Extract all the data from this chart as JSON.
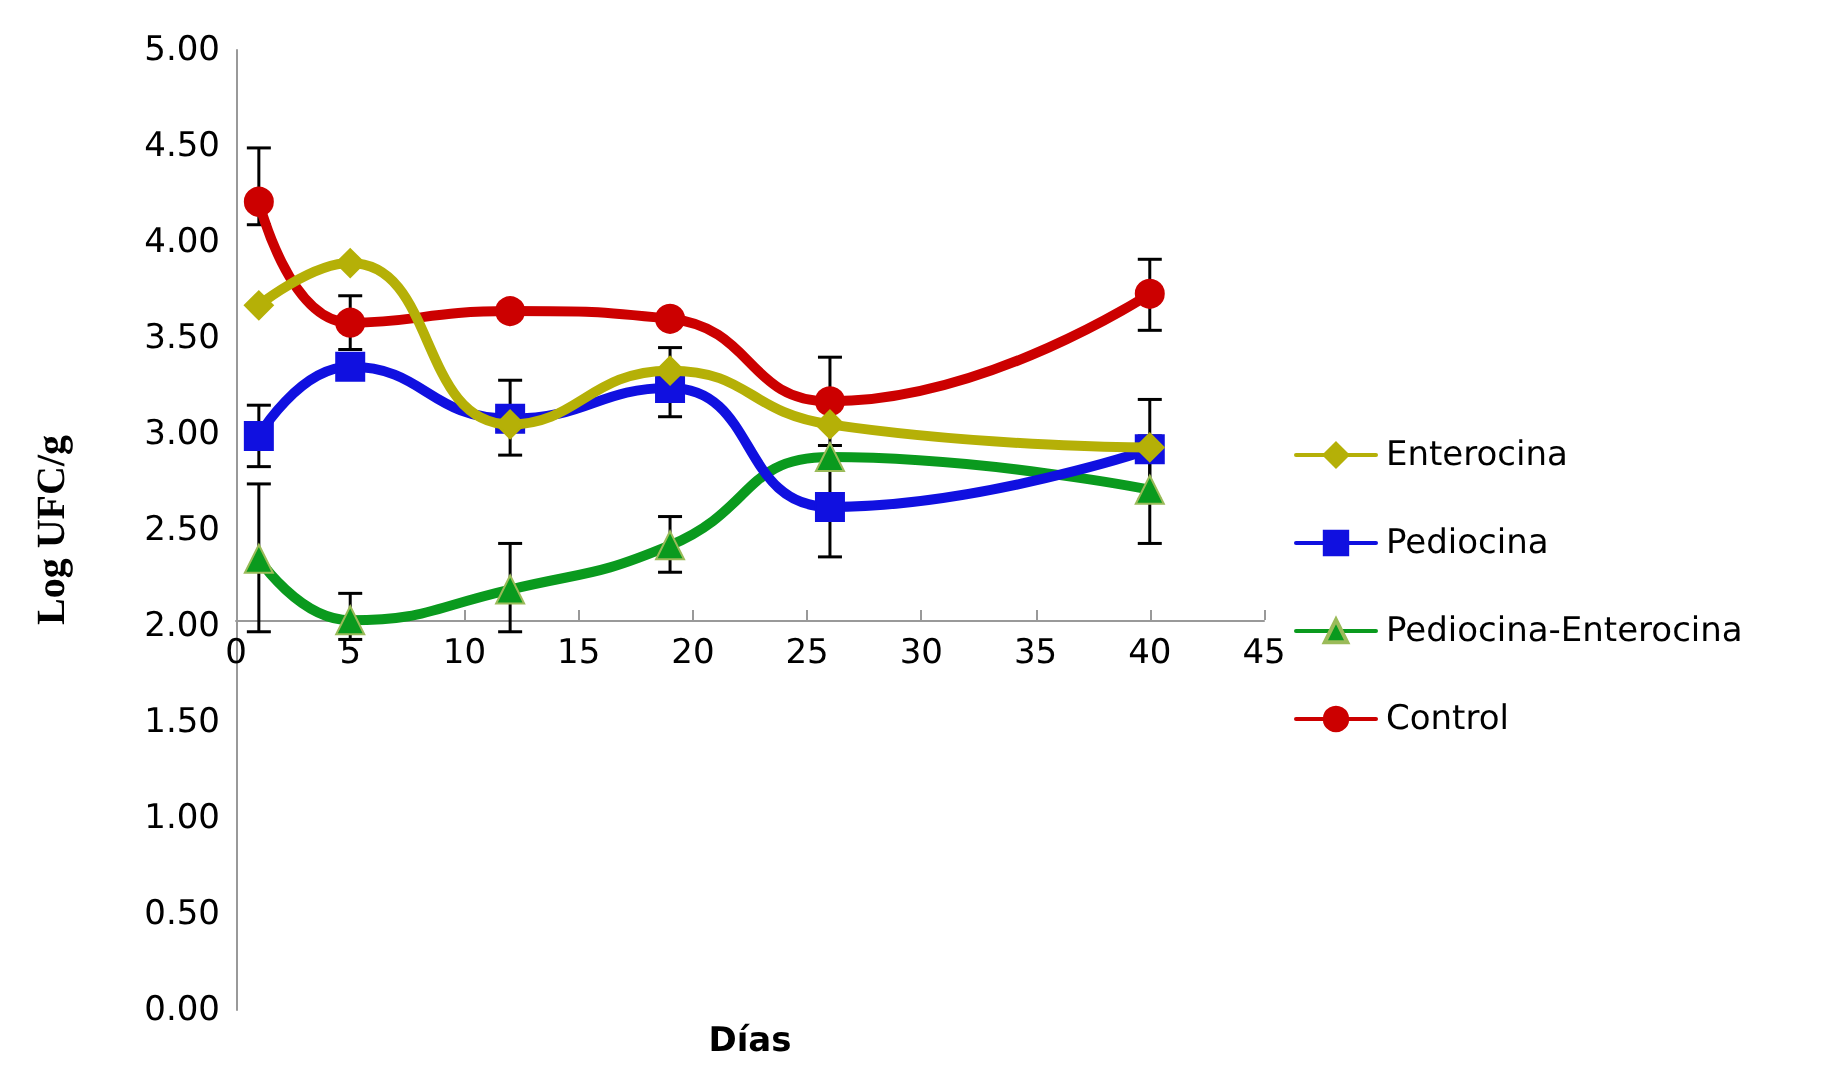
{
  "chart_data": {
    "type": "line",
    "xlabel": "Días",
    "ylabel": "Log UFC/g",
    "x": [
      1,
      5,
      12,
      19,
      26,
      40
    ],
    "xlim": [
      0,
      45
    ],
    "xticks": [
      0,
      5,
      10,
      15,
      20,
      25,
      30,
      35,
      40,
      45
    ],
    "ylim": [
      0,
      5
    ],
    "yticks": [
      {
        "value": 0,
        "label": "0.00"
      },
      {
        "value": 0.5,
        "label": "0.50"
      },
      {
        "value": 1,
        "label": "1.00"
      },
      {
        "value": 1.5,
        "label": "1.50"
      },
      {
        "value": 2,
        "label": "2.00"
      },
      {
        "value": 2.5,
        "label": "2.50"
      },
      {
        "value": 3,
        "label": "3.00"
      },
      {
        "value": 3.5,
        "label": "3.50"
      },
      {
        "value": 4,
        "label": "4.00"
      },
      {
        "value": 4.5,
        "label": "4.50"
      },
      {
        "value": 5,
        "label": "5.00"
      }
    ],
    "grid": false,
    "legend": "right",
    "line_style": "solid",
    "series": [
      {
        "name": "Enterocina",
        "color": "#b5b007",
        "marker": "diamond",
        "values": [
          3.67,
          3.89,
          3.05,
          3.33,
          3.05,
          2.93
        ]
      },
      {
        "name": "Pediocina",
        "color": "#1010e0",
        "marker": "square",
        "values": [
          2.99,
          3.35,
          3.08,
          3.24,
          2.62,
          2.92
        ],
        "errors": [
          [
            2.83,
            3.15
          ],
          null,
          [
            2.89,
            3.28
          ],
          [
            3.09,
            3.45
          ],
          [
            2.36,
            2.88
          ],
          [
            2.66,
            3.18
          ]
        ]
      },
      {
        "name": "Pediocina-Enterocina",
        "color": "#0a9a1e",
        "marker": "triangle",
        "values": [
          2.35,
          2.03,
          2.19,
          2.42,
          2.88,
          2.71
        ],
        "errors": [
          [
            1.97,
            2.74
          ],
          [
            1.93,
            2.17
          ],
          [
            1.97,
            2.43
          ],
          [
            2.28,
            2.57
          ],
          null,
          [
            2.43,
            2.99
          ]
        ]
      },
      {
        "name": "Control",
        "color": "#cc0000",
        "marker": "circle",
        "values": [
          4.21,
          3.58,
          3.64,
          3.6,
          3.17,
          3.73
        ],
        "errors": [
          [
            4.09,
            4.49
          ],
          [
            3.44,
            3.72
          ],
          null,
          null,
          [
            2.94,
            3.4
          ],
          [
            3.54,
            3.91
          ]
        ]
      }
    ]
  }
}
